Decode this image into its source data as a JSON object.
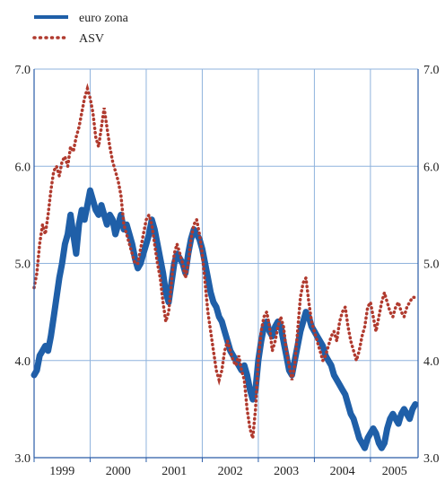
{
  "chart_data": {
    "type": "line",
    "title": "",
    "xlabel": "",
    "ylabel": "",
    "xlim": [
      1999.0,
      2005.85
    ],
    "ylim": [
      3.0,
      7.0
    ],
    "y_ticks": [
      "3.0",
      "4.0",
      "5.0",
      "6.0",
      "7.0"
    ],
    "x_ticks": [
      "1999",
      "2000",
      "2001",
      "2002",
      "2003",
      "2004",
      "2005"
    ],
    "grid": true,
    "legend": "top-left",
    "colors": {
      "euro": "#1f5fa8",
      "asv": "#b03a2e",
      "grid": "#8fb3dd",
      "axis": "#2a5ca8"
    },
    "series": [
      {
        "name": "euro zona",
        "style": "solid",
        "x": [
          1999.0,
          1999.05,
          1999.1,
          1999.15,
          1999.2,
          1999.25,
          1999.3,
          1999.35,
          1999.4,
          1999.45,
          1999.5,
          1999.55,
          1999.6,
          1999.65,
          1999.7,
          1999.75,
          1999.8,
          1999.85,
          1999.9,
          1999.95,
          2000.0,
          2000.05,
          2000.1,
          2000.15,
          2000.2,
          2000.25,
          2000.3,
          2000.35,
          2000.4,
          2000.45,
          2000.5,
          2000.55,
          2000.6,
          2000.65,
          2000.7,
          2000.75,
          2000.8,
          2000.85,
          2000.9,
          2000.95,
          2001.0,
          2001.05,
          2001.1,
          2001.15,
          2001.2,
          2001.25,
          2001.3,
          2001.35,
          2001.4,
          2001.45,
          2001.5,
          2001.55,
          2001.6,
          2001.65,
          2001.7,
          2001.75,
          2001.8,
          2001.85,
          2001.9,
          2001.95,
          2002.0,
          2002.05,
          2002.1,
          2002.15,
          2002.2,
          2002.25,
          2002.3,
          2002.35,
          2002.4,
          2002.45,
          2002.5,
          2002.55,
          2002.6,
          2002.65,
          2002.7,
          2002.75,
          2002.8,
          2002.85,
          2002.9,
          2002.95,
          2003.0,
          2003.05,
          2003.1,
          2003.15,
          2003.2,
          2003.25,
          2003.3,
          2003.35,
          2003.4,
          2003.45,
          2003.5,
          2003.55,
          2003.6,
          2003.65,
          2003.7,
          2003.75,
          2003.8,
          2003.85,
          2003.9,
          2003.95,
          2004.0,
          2004.05,
          2004.1,
          2004.15,
          2004.2,
          2004.25,
          2004.3,
          2004.35,
          2004.4,
          2004.45,
          2004.5,
          2004.55,
          2004.6,
          2004.65,
          2004.7,
          2004.75,
          2004.8,
          2004.85,
          2004.9,
          2004.95,
          2005.0,
          2005.05,
          2005.1,
          2005.15,
          2005.2,
          2005.25,
          2005.3,
          2005.35,
          2005.4,
          2005.45,
          2005.5,
          2005.55,
          2005.6,
          2005.65,
          2005.7,
          2005.75,
          2005.8
        ],
        "y": [
          3.85,
          3.9,
          4.05,
          4.1,
          4.15,
          4.1,
          4.25,
          4.45,
          4.65,
          4.85,
          5.0,
          5.2,
          5.3,
          5.5,
          5.3,
          5.1,
          5.4,
          5.55,
          5.45,
          5.6,
          5.75,
          5.65,
          5.55,
          5.5,
          5.6,
          5.5,
          5.4,
          5.5,
          5.45,
          5.3,
          5.4,
          5.5,
          5.35,
          5.4,
          5.3,
          5.2,
          5.05,
          4.95,
          5.0,
          5.1,
          5.2,
          5.3,
          5.45,
          5.35,
          5.2,
          5.05,
          4.9,
          4.7,
          4.6,
          4.8,
          5.0,
          5.1,
          5.05,
          5.0,
          4.9,
          5.1,
          5.25,
          5.35,
          5.3,
          5.25,
          5.15,
          5.0,
          4.85,
          4.7,
          4.6,
          4.55,
          4.45,
          4.4,
          4.3,
          4.2,
          4.1,
          4.05,
          4.0,
          3.95,
          3.9,
          3.95,
          3.85,
          3.7,
          3.6,
          3.7,
          4.0,
          4.2,
          4.35,
          4.4,
          4.3,
          4.25,
          4.35,
          4.4,
          4.35,
          4.2,
          4.05,
          3.9,
          3.85,
          4.0,
          4.15,
          4.3,
          4.4,
          4.5,
          4.45,
          4.35,
          4.3,
          4.25,
          4.2,
          4.15,
          4.05,
          4.0,
          3.95,
          3.85,
          3.8,
          3.75,
          3.7,
          3.65,
          3.55,
          3.45,
          3.4,
          3.3,
          3.2,
          3.15,
          3.1,
          3.2,
          3.25,
          3.3,
          3.25,
          3.15,
          3.1,
          3.15,
          3.3,
          3.4,
          3.45,
          3.4,
          3.35,
          3.45,
          3.5,
          3.45,
          3.4,
          3.5,
          3.55
        ]
      },
      {
        "name": "ASV",
        "style": "dotted",
        "x": [
          1999.0,
          1999.05,
          1999.1,
          1999.15,
          1999.2,
          1999.25,
          1999.3,
          1999.35,
          1999.4,
          1999.45,
          1999.5,
          1999.55,
          1999.6,
          1999.65,
          1999.7,
          1999.75,
          1999.8,
          1999.85,
          1999.9,
          1999.95,
          2000.0,
          2000.05,
          2000.1,
          2000.15,
          2000.2,
          2000.25,
          2000.3,
          2000.35,
          2000.4,
          2000.45,
          2000.5,
          2000.55,
          2000.6,
          2000.65,
          2000.7,
          2000.75,
          2000.8,
          2000.85,
          2000.9,
          2000.95,
          2001.0,
          2001.05,
          2001.1,
          2001.15,
          2001.2,
          2001.25,
          2001.3,
          2001.35,
          2001.4,
          2001.45,
          2001.5,
          2001.55,
          2001.6,
          2001.65,
          2001.7,
          2001.75,
          2001.8,
          2001.85,
          2001.9,
          2001.95,
          2002.0,
          2002.05,
          2002.1,
          2002.15,
          2002.2,
          2002.25,
          2002.3,
          2002.35,
          2002.4,
          2002.45,
          2002.5,
          2002.55,
          2002.6,
          2002.65,
          2002.7,
          2002.75,
          2002.8,
          2002.85,
          2002.9,
          2002.95,
          2003.0,
          2003.05,
          2003.1,
          2003.15,
          2003.2,
          2003.25,
          2003.3,
          2003.35,
          2003.4,
          2003.45,
          2003.5,
          2003.55,
          2003.6,
          2003.65,
          2003.7,
          2003.75,
          2003.8,
          2003.85,
          2003.9,
          2003.95,
          2004.0,
          2004.05,
          2004.1,
          2004.15,
          2004.2,
          2004.25,
          2004.3,
          2004.35,
          2004.4,
          2004.45,
          2004.5,
          2004.55,
          2004.6,
          2004.65,
          2004.7,
          2004.75,
          2004.8,
          2004.85,
          2004.9,
          2004.95,
          2005.0,
          2005.05,
          2005.1,
          2005.15,
          2005.2,
          2005.25,
          2005.3,
          2005.35,
          2005.4,
          2005.45,
          2005.5,
          2005.55,
          2005.6,
          2005.65,
          2005.7,
          2005.75,
          2005.8
        ],
        "y": [
          4.75,
          4.9,
          5.2,
          5.4,
          5.3,
          5.5,
          5.75,
          5.95,
          6.0,
          5.9,
          6.05,
          6.1,
          6.0,
          6.2,
          6.15,
          6.3,
          6.4,
          6.55,
          6.7,
          6.8,
          6.7,
          6.55,
          6.3,
          6.2,
          6.4,
          6.6,
          6.4,
          6.2,
          6.05,
          5.95,
          5.85,
          5.7,
          5.4,
          5.3,
          5.2,
          5.1,
          5.0,
          5.0,
          5.15,
          5.3,
          5.45,
          5.5,
          5.4,
          5.2,
          5.0,
          4.85,
          4.6,
          4.4,
          4.5,
          4.8,
          5.1,
          5.2,
          5.1,
          5.0,
          4.85,
          5.0,
          5.25,
          5.4,
          5.45,
          5.3,
          5.1,
          4.8,
          4.5,
          4.3,
          4.1,
          3.9,
          3.8,
          3.9,
          4.1,
          4.2,
          4.1,
          4.0,
          3.95,
          4.05,
          3.9,
          3.8,
          3.5,
          3.3,
          3.2,
          3.5,
          4.0,
          4.3,
          4.45,
          4.5,
          4.35,
          4.1,
          4.2,
          4.35,
          4.45,
          4.35,
          4.1,
          3.95,
          3.8,
          3.95,
          4.3,
          4.65,
          4.8,
          4.85,
          4.6,
          4.4,
          4.3,
          4.2,
          4.1,
          4.0,
          4.05,
          4.15,
          4.25,
          4.3,
          4.2,
          4.4,
          4.5,
          4.55,
          4.35,
          4.2,
          4.1,
          4.0,
          4.1,
          4.25,
          4.35,
          4.55,
          4.6,
          4.45,
          4.3,
          4.45,
          4.6,
          4.7,
          4.6,
          4.5,
          4.45,
          4.55,
          4.6,
          4.5,
          4.45,
          4.55,
          4.6,
          4.65,
          4.65
        ]
      }
    ]
  }
}
